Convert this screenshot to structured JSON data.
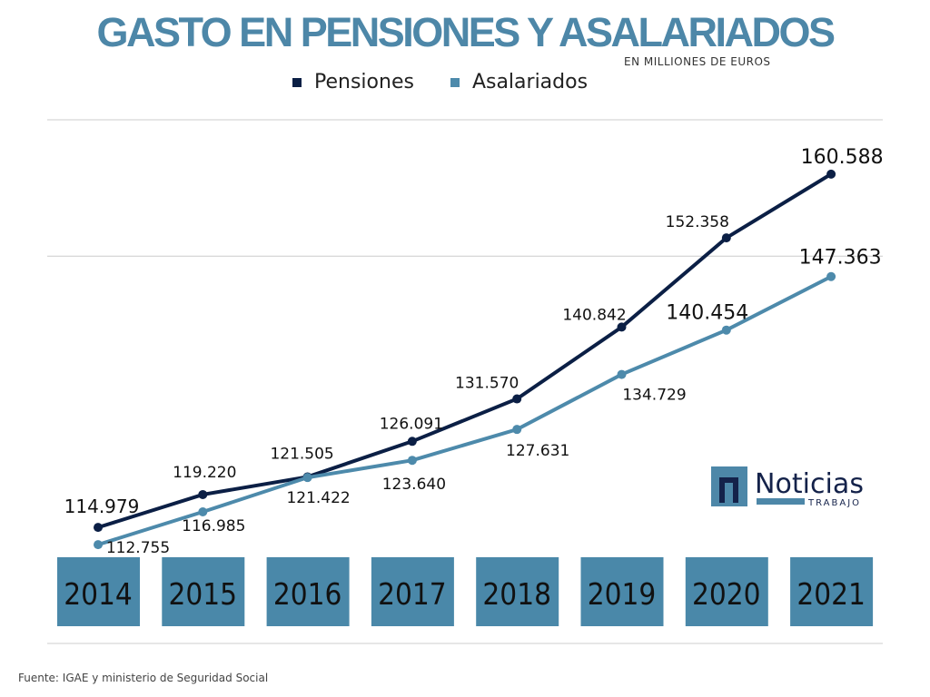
{
  "chart_data": {
    "type": "line",
    "title": "GASTO EN PENSIONES Y ASALARIADOS",
    "subtitle": "EN MILLIONES DE EUROS",
    "categories": [
      "2014",
      "2015",
      "2016",
      "2017",
      "2018",
      "2019",
      "2020",
      "2021"
    ],
    "series": [
      {
        "name": "Pensiones",
        "color": "#0b1f45",
        "values": [
          114979,
          119220,
          121505,
          126091,
          131570,
          140842,
          152358,
          160588
        ],
        "labels": [
          "114.979",
          "119.220",
          "121.505",
          "126.091",
          "131.570",
          "140.842",
          "152.358",
          "160.588"
        ]
      },
      {
        "name": "Asalariados",
        "color": "#4d8aab",
        "values": [
          112755,
          116985,
          121422,
          123640,
          127631,
          134729,
          140454,
          147363
        ],
        "labels": [
          "112.755",
          "116.985",
          "121.422",
          "123.640",
          "127.631",
          "134.729",
          "140.454",
          "147.363"
        ]
      }
    ],
    "ylim": [
      100000,
      167600
    ],
    "grid": true,
    "legend": "top",
    "year_box_color": "#4a88a9"
  },
  "source": "Fuente: IGAE y ministerio de Seguridad Social",
  "logo": {
    "text": "Noticias",
    "sub": "TRABAJO"
  }
}
